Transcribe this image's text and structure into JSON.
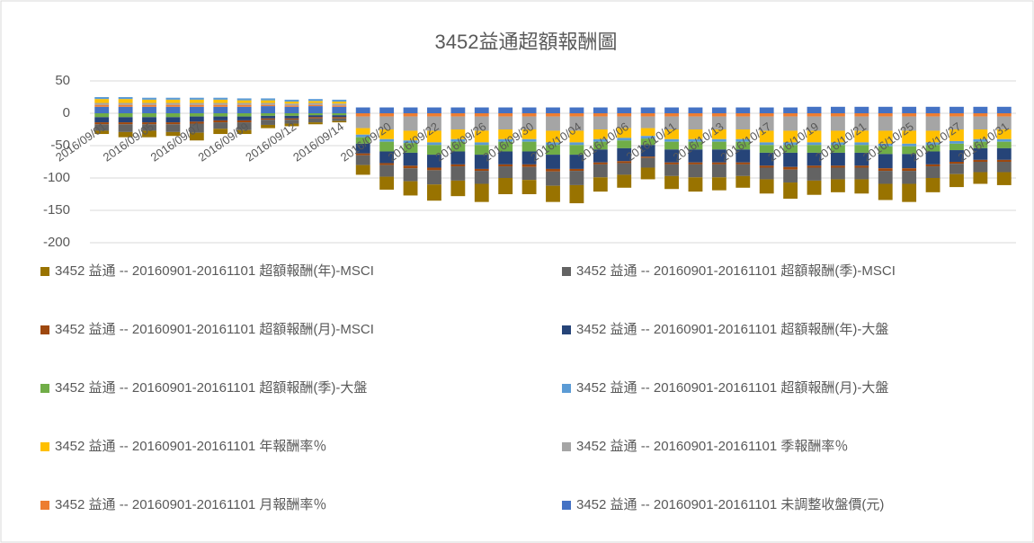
{
  "chart_data": {
    "type": "stacked_bar",
    "title": "3452益通超額報酬圖",
    "categories": [
      "2016/09/01",
      null,
      "2016/09/05",
      null,
      "2016/09/07",
      null,
      "2016/09/09",
      null,
      "2016/09/12",
      null,
      "2016/09/14",
      null,
      "2016/09/20",
      null,
      "2016/09/22",
      null,
      "2016/09/26",
      null,
      "2016/09/30",
      null,
      "2016/10/04",
      null,
      "2016/10/06",
      null,
      "2016/10/11",
      null,
      "2016/10/13",
      null,
      "2016/10/17",
      null,
      "2016/10/19",
      null,
      "2016/10/21",
      null,
      "2016/10/25",
      null,
      "2016/10/27",
      null,
      "2016/10/31"
    ],
    "ylim": [
      -200,
      50
    ],
    "yticks": [
      50,
      0,
      -50,
      -100,
      -150,
      -200
    ],
    "grid": true,
    "legend": "bottom",
    "series": [
      {
        "name": "3452 益通 -- 20160901-20161101 超額報酬(年)-MSCI",
        "color": "#997300",
        "values": [
          -5,
          -8,
          -10,
          -6,
          -12,
          -8,
          -6,
          -5,
          -4,
          -3,
          -2,
          -15,
          -20,
          -22,
          -25,
          -24,
          -28,
          -25,
          -22,
          -25,
          -28,
          -22,
          -20,
          -18,
          -20,
          -22,
          -20,
          -18,
          -22,
          -25,
          -22,
          -20,
          -22,
          -25,
          -28,
          -22,
          -20,
          -18,
          -20
        ]
      },
      {
        "name": "3452 益通 -- 20160901-20161101 超額報酬(季)-MSCI",
        "color": "#636363",
        "values": [
          -10,
          -12,
          -10,
          -12,
          -14,
          -10,
          -12,
          -8,
          -6,
          -6,
          -4,
          -15,
          -18,
          -20,
          -22,
          -22,
          -20,
          -18,
          -20,
          -22,
          -22,
          -20,
          -18,
          -15,
          -18,
          -20,
          -20,
          -18,
          -18,
          -20,
          -20,
          -18,
          -18,
          -20,
          -20,
          -18,
          -16,
          -16,
          -16
        ]
      },
      {
        "name": "3452 益通 -- 20160901-20161101 超額報酬(月)-MSCI",
        "color": "#9e480e",
        "values": [
          -3,
          -3,
          -3,
          -3,
          -3,
          -3,
          -3,
          -2,
          -2,
          -2,
          -2,
          -3,
          -3,
          -4,
          -4,
          -3,
          -3,
          -3,
          -4,
          -4,
          -3,
          -3,
          -3,
          -2,
          -3,
          -3,
          -3,
          -3,
          -3,
          -4,
          -3,
          -3,
          -3,
          -4,
          -4,
          -3,
          -3,
          -3,
          -3
        ]
      },
      {
        "name": "3452 益通 -- 20160901-20161101 超額報酬(年)-大盤",
        "color": "#264478",
        "values": [
          -8,
          -8,
          -8,
          -8,
          -8,
          -6,
          -6,
          -4,
          -4,
          -3,
          -3,
          -15,
          -18,
          -20,
          -20,
          -20,
          -22,
          -20,
          -20,
          -22,
          -22,
          -20,
          -20,
          -18,
          -20,
          -20,
          -20,
          -20,
          -20,
          -22,
          -20,
          -20,
          -20,
          -22,
          -22,
          -20,
          -18,
          -18,
          -18
        ]
      },
      {
        "name": "3452 益通 -- 20160901-20161101 超額報酬(季)-大盤",
        "color": "#70ad47",
        "values": [
          -6,
          -6,
          -6,
          -6,
          -5,
          -5,
          -5,
          -4,
          -4,
          -3,
          -3,
          -10,
          -15,
          -15,
          -15,
          -15,
          -15,
          -15,
          -15,
          -15,
          -15,
          -12,
          -12,
          -10,
          -12,
          -12,
          -12,
          -12,
          -12,
          -12,
          -12,
          -12,
          -12,
          -12,
          -12,
          -10,
          -10,
          -10,
          -10
        ]
      },
      {
        "name": "3452 益通 -- 20160901-20161101 超額報酬(月)-大盤",
        "color": "#5b9bd5",
        "values": [
          3,
          3,
          3,
          3,
          3,
          3,
          3,
          3,
          3,
          3,
          3,
          -4,
          -4,
          -4,
          -4,
          -4,
          -4,
          -4,
          -4,
          -4,
          -4,
          -4,
          -4,
          -4,
          -4,
          -4,
          -4,
          -4,
          -4,
          -4,
          -4,
          -4,
          -4,
          -4,
          -4,
          -4,
          -4,
          -4,
          -4
        ]
      },
      {
        "name": "3452 益通 -- 20160901-20161101 年報酬率％",
        "color": "#ffc000",
        "values": [
          6,
          6,
          5,
          5,
          5,
          5,
          4,
          4,
          3,
          3,
          3,
          -10,
          -15,
          -15,
          -18,
          -15,
          -18,
          -15,
          -15,
          -18,
          -18,
          -15,
          -15,
          -12,
          -15,
          -15,
          -15,
          -15,
          -18,
          -18,
          -18,
          -18,
          -18,
          -20,
          -20,
          -18,
          -18,
          -15,
          -15
        ]
      },
      {
        "name": "3452 益通 -- 20160901-20161101 季報酬率％",
        "color": "#a5a5a5",
        "values": [
          3,
          3,
          3,
          3,
          3,
          3,
          3,
          3,
          3,
          3,
          3,
          -18,
          -20,
          -22,
          -22,
          -20,
          -22,
          -20,
          -20,
          -22,
          -22,
          -20,
          -18,
          -18,
          -20,
          -20,
          -20,
          -20,
          -22,
          -22,
          -22,
          -22,
          -22,
          -22,
          -22,
          -22,
          -20,
          -20,
          -20
        ]
      },
      {
        "name": "3452 益通 -- 20160901-20161101 月報酬率％",
        "color": "#ed7d31",
        "values": [
          3,
          3,
          3,
          3,
          3,
          3,
          3,
          2,
          2,
          2,
          2,
          -5,
          -5,
          -5,
          -5,
          -5,
          -5,
          -5,
          -5,
          -5,
          -5,
          -5,
          -5,
          -5,
          -5,
          -5,
          -5,
          -5,
          -5,
          -5,
          -5,
          -5,
          -5,
          -5,
          -5,
          -5,
          -5,
          -5,
          -5
        ]
      },
      {
        "name": "3452 益通 -- 20160901-20161101 未調整收盤價(元)",
        "color": "#4472c4",
        "values": [
          10,
          10,
          10,
          10,
          10,
          10,
          10,
          11,
          10,
          11,
          10,
          9,
          9,
          9,
          9,
          9,
          9,
          9,
          9,
          9,
          9,
          9,
          9,
          9,
          9,
          9,
          9,
          9,
          9,
          9,
          10,
          10,
          10,
          10,
          10,
          10,
          10,
          10,
          10
        ]
      }
    ]
  }
}
